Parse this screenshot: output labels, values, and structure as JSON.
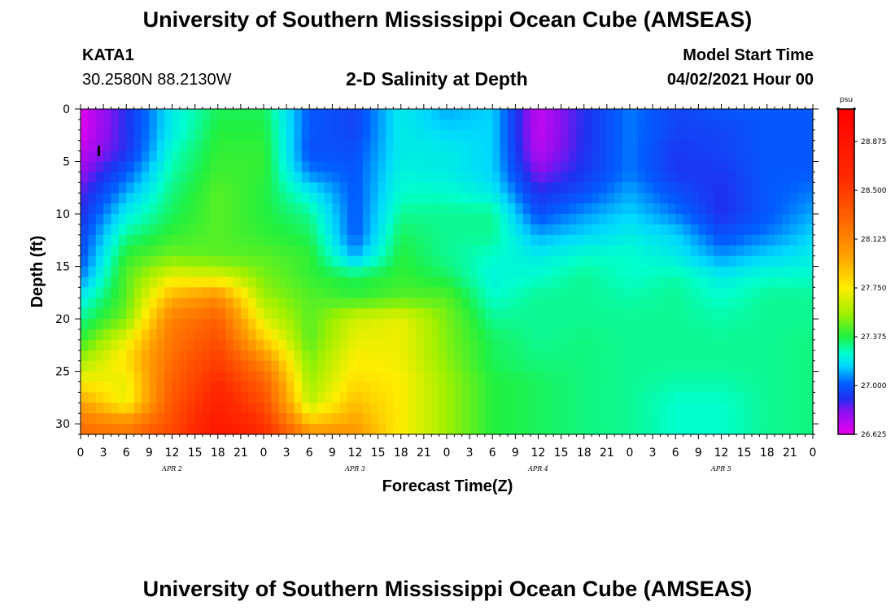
{
  "header": {
    "title_top": "University of Southern Mississippi Ocean Cube (AMSEAS)",
    "title_bottom": "University of Southern Mississippi Ocean Cube (AMSEAS)",
    "station": "KATA1",
    "coords": "30.2580N  88.2130W",
    "plot_title": "2-D Salinity at Depth",
    "model_label": "Model Start Time",
    "model_start": "04/02/2021 Hour 00"
  },
  "chart_data": {
    "type": "heatmap",
    "title": "2-D Salinity at Depth",
    "xlabel": "Forecast Time(Z)",
    "ylabel": "Depth (ft)",
    "x_hours": [
      0,
      3,
      6,
      9,
      12,
      15,
      18,
      21,
      24,
      27,
      30,
      33,
      36,
      39,
      42,
      45,
      48,
      51,
      54,
      57,
      60,
      63,
      66,
      69,
      72,
      75,
      78,
      81,
      84,
      87,
      90,
      93,
      96
    ],
    "x_tick_labels": [
      "0",
      "3",
      "6",
      "9",
      "12",
      "15",
      "18",
      "21",
      "0",
      "3",
      "6",
      "9",
      "12",
      "15",
      "18",
      "21",
      "0",
      "3",
      "6",
      "9",
      "12",
      "15",
      "18",
      "21",
      "0",
      "3",
      "6",
      "9",
      "12",
      "15",
      "18",
      "21",
      "0"
    ],
    "day_labels": [
      {
        "text": "APR  2",
        "hour": 12
      },
      {
        "text": "APR  3",
        "hour": 36
      },
      {
        "text": "APR  4",
        "hour": 60
      },
      {
        "text": "APR  5",
        "hour": 84
      }
    ],
    "xlim": [
      0,
      96
    ],
    "ylim": [
      31,
      0
    ],
    "y_ticks": [
      0,
      5,
      10,
      15,
      20,
      25,
      30
    ],
    "colorbar": {
      "units": "psu",
      "range": [
        26.625,
        29.125
      ],
      "tick_values": [
        26.625,
        27.0,
        27.375,
        27.75,
        28.125,
        28.5,
        28.875
      ],
      "tick_labels": [
        "26.625",
        "27.000",
        "27.375",
        "27.750",
        "28.125",
        "28.500",
        "28.875"
      ],
      "stops": [
        {
          "v": 26.625,
          "c": "#ee00ee"
        },
        {
          "v": 26.8,
          "c": "#8a10f0"
        },
        {
          "v": 26.9,
          "c": "#2030f0"
        },
        {
          "v": 27.02,
          "c": "#0060ff"
        },
        {
          "v": 27.15,
          "c": "#00d8ff"
        },
        {
          "v": 27.25,
          "c": "#00ffcc"
        },
        {
          "v": 27.375,
          "c": "#20f040"
        },
        {
          "v": 27.55,
          "c": "#a0f000"
        },
        {
          "v": 27.75,
          "c": "#ffee00"
        },
        {
          "v": 28.0,
          "c": "#ffa000"
        },
        {
          "v": 28.3,
          "c": "#ff6000"
        },
        {
          "v": 28.6,
          "c": "#ff2a00"
        },
        {
          "v": 29.125,
          "c": "#ff0000"
        }
      ]
    },
    "grid_depths_ft": [
      0,
      2,
      4,
      6,
      8,
      10,
      12,
      14,
      16,
      18,
      20,
      22,
      24,
      26,
      28,
      30,
      31
    ],
    "grid_hours": [
      0,
      6,
      12,
      18,
      24,
      30,
      36,
      42,
      48,
      54,
      60,
      66,
      72,
      78,
      84,
      90,
      96
    ],
    "salinity_psu": [
      [
        26.65,
        26.9,
        27.2,
        27.35,
        27.35,
        27.0,
        26.95,
        27.2,
        27.1,
        27.15,
        26.7,
        26.9,
        27.05,
        26.95,
        27.0,
        27.0,
        27.0
      ],
      [
        26.65,
        26.9,
        27.2,
        27.38,
        27.38,
        27.0,
        26.95,
        27.2,
        27.15,
        27.15,
        26.7,
        26.9,
        27.05,
        26.95,
        26.95,
        27.0,
        27.0
      ],
      [
        26.7,
        26.9,
        27.25,
        27.4,
        27.4,
        26.98,
        26.98,
        27.2,
        27.2,
        27.15,
        26.72,
        26.9,
        27.05,
        26.92,
        26.95,
        27.0,
        27.0
      ],
      [
        26.78,
        27.0,
        27.28,
        27.42,
        27.4,
        27.05,
        27.0,
        27.22,
        27.2,
        27.15,
        26.8,
        26.92,
        27.05,
        26.92,
        26.92,
        27.0,
        27.0
      ],
      [
        26.85,
        27.1,
        27.32,
        27.45,
        27.38,
        27.2,
        27.0,
        27.25,
        27.25,
        27.2,
        26.9,
        26.98,
        27.1,
        26.98,
        26.9,
        27.0,
        27.05
      ],
      [
        26.9,
        27.2,
        27.35,
        27.45,
        27.38,
        27.3,
        27.0,
        27.3,
        27.3,
        27.3,
        26.98,
        27.08,
        27.15,
        27.05,
        26.9,
        27.0,
        27.1
      ],
      [
        26.95,
        27.3,
        27.4,
        27.45,
        27.4,
        27.35,
        27.0,
        27.35,
        27.3,
        27.3,
        27.1,
        27.15,
        27.2,
        27.15,
        26.98,
        27.05,
        27.15
      ],
      [
        26.98,
        27.4,
        27.48,
        27.45,
        27.45,
        27.4,
        27.1,
        27.38,
        27.3,
        27.25,
        27.2,
        27.25,
        27.25,
        27.2,
        27.08,
        27.15,
        27.2
      ],
      [
        27.05,
        27.45,
        27.7,
        27.68,
        27.5,
        27.4,
        27.35,
        27.4,
        27.35,
        27.22,
        27.25,
        27.3,
        27.25,
        27.28,
        27.2,
        27.25,
        27.25
      ],
      [
        27.2,
        27.45,
        27.95,
        28.1,
        27.55,
        27.45,
        27.4,
        27.45,
        27.45,
        27.25,
        27.3,
        27.3,
        27.28,
        27.3,
        27.25,
        27.3,
        27.3
      ],
      [
        27.3,
        27.5,
        28.15,
        28.3,
        27.68,
        27.45,
        27.65,
        27.7,
        27.5,
        27.3,
        27.3,
        27.3,
        27.3,
        27.3,
        27.28,
        27.3,
        27.3
      ],
      [
        27.4,
        27.7,
        28.2,
        28.4,
        27.85,
        27.45,
        27.7,
        27.72,
        27.5,
        27.35,
        27.3,
        27.32,
        27.3,
        27.3,
        27.3,
        27.3,
        27.32
      ],
      [
        27.55,
        27.8,
        28.25,
        28.5,
        28.1,
        27.5,
        27.75,
        27.72,
        27.52,
        27.35,
        27.32,
        27.32,
        27.3,
        27.3,
        27.3,
        27.3,
        27.32
      ],
      [
        27.75,
        27.7,
        28.3,
        28.6,
        28.3,
        27.55,
        27.8,
        27.75,
        27.55,
        27.38,
        27.35,
        27.32,
        27.3,
        27.28,
        27.28,
        27.3,
        27.32
      ],
      [
        28.0,
        27.7,
        28.35,
        28.7,
        28.4,
        27.6,
        27.9,
        27.75,
        27.55,
        27.38,
        27.35,
        27.32,
        27.3,
        27.25,
        27.25,
        27.3,
        27.32
      ],
      [
        28.2,
        28.1,
        28.4,
        28.8,
        28.55,
        27.9,
        28.0,
        27.75,
        27.55,
        27.38,
        27.35,
        27.32,
        27.3,
        27.25,
        27.25,
        27.3,
        27.32
      ],
      [
        28.25,
        28.2,
        28.45,
        28.85,
        28.6,
        28.1,
        28.05,
        27.75,
        27.55,
        27.38,
        27.35,
        27.32,
        27.3,
        27.25,
        27.25,
        27.3,
        27.32
      ]
    ]
  }
}
